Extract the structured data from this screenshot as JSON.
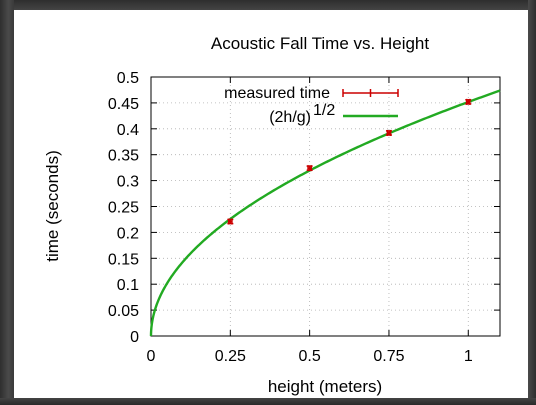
{
  "chart_data": {
    "type": "line",
    "title": "Acoustic Fall Time vs. Height",
    "xlabel": "height (meters)",
    "ylabel": "time (seconds)",
    "xlim": [
      0,
      1.1
    ],
    "ylim": [
      0,
      0.5
    ],
    "xticks": [
      0,
      0.25,
      0.5,
      0.75,
      1
    ],
    "xtick_labels": [
      "0",
      "0.25",
      "0.5",
      "0.75",
      "1"
    ],
    "yticks": [
      0,
      0.05,
      0.1,
      0.15,
      0.2,
      0.25,
      0.3,
      0.35,
      0.4,
      0.45,
      0.5
    ],
    "ytick_labels": [
      "0",
      "0.05",
      "0.1",
      "0.15",
      "0.2",
      "0.25",
      "0.3",
      "0.35",
      "0.4",
      "0.45",
      "0.5"
    ],
    "grid": true,
    "legend_position": "top-right",
    "series": [
      {
        "name": "measured time",
        "kind": "points-with-errorbars",
        "color": "#cc0000",
        "x": [
          0.25,
          0.5,
          0.75,
          1.0
        ],
        "y": [
          0.221,
          0.324,
          0.392,
          0.452
        ],
        "x_error": 0.005,
        "y_error": 0.004
      },
      {
        "name_base": "(2h/g)",
        "name_exponent": "1/2",
        "kind": "function",
        "formula": "sqrt(2*h/9.8)",
        "g": 9.8,
        "color": "#22aa22"
      }
    ]
  }
}
